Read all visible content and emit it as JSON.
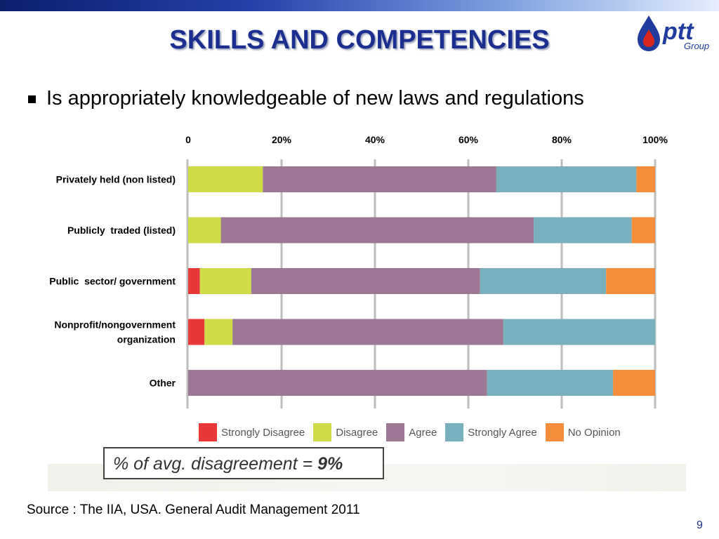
{
  "slide": {
    "title": "SKILLS AND COMPETENCIES",
    "bullet": "Is appropriately knowledgeable of new laws and regulations",
    "note_prefix": "% of avg. disagreement = ",
    "note_value": "9%",
    "source": "Source : The IIA, USA. General Audit Management 2011",
    "page_number": "9"
  },
  "logo": {
    "text": "ptt",
    "subtext": "Group",
    "drop_color": "#1f3c9e",
    "drop_inner_color": "#d9261c"
  },
  "colors": {
    "accent": "#1a2f8f",
    "strongly_disagree": "#e8393a",
    "disagree": "#cfdc47",
    "agree": "#9c7894",
    "strongly_agree": "#78b1bd",
    "no_opinion": "#f58e3a"
  },
  "chart_data": {
    "type": "bar",
    "orientation": "horizontal",
    "stacked": true,
    "x_tick_labels": [
      "0",
      "20%",
      "40%",
      "60%",
      "80%",
      "100%"
    ],
    "xlim": [
      0,
      100
    ],
    "grid": true,
    "legend_position": "bottom",
    "categories": [
      [
        "Privately held (non listed)"
      ],
      [
        "Publicly  traded (listed)"
      ],
      [
        "Public  sector/ government"
      ],
      [
        "Nonprofit/nongovernment",
        "organization"
      ],
      [
        "Other"
      ]
    ],
    "series": [
      {
        "name": "Strongly Disagree",
        "color": "#e8393a",
        "values": [
          0,
          0,
          2.5,
          3.5,
          0
        ]
      },
      {
        "name": "Disagree",
        "color": "#cfdc47",
        "values": [
          16,
          7,
          11,
          6,
          0
        ]
      },
      {
        "name": "Agree",
        "color": "#9c7894",
        "values": [
          50,
          67,
          49,
          58,
          64
        ]
      },
      {
        "name": "Strongly Agree",
        "color": "#78b1bd",
        "values": [
          30,
          21,
          27,
          32.5,
          27
        ]
      },
      {
        "name": "No Opinion",
        "color": "#f58e3a",
        "values": [
          4,
          5,
          10.5,
          0,
          9
        ]
      }
    ]
  }
}
